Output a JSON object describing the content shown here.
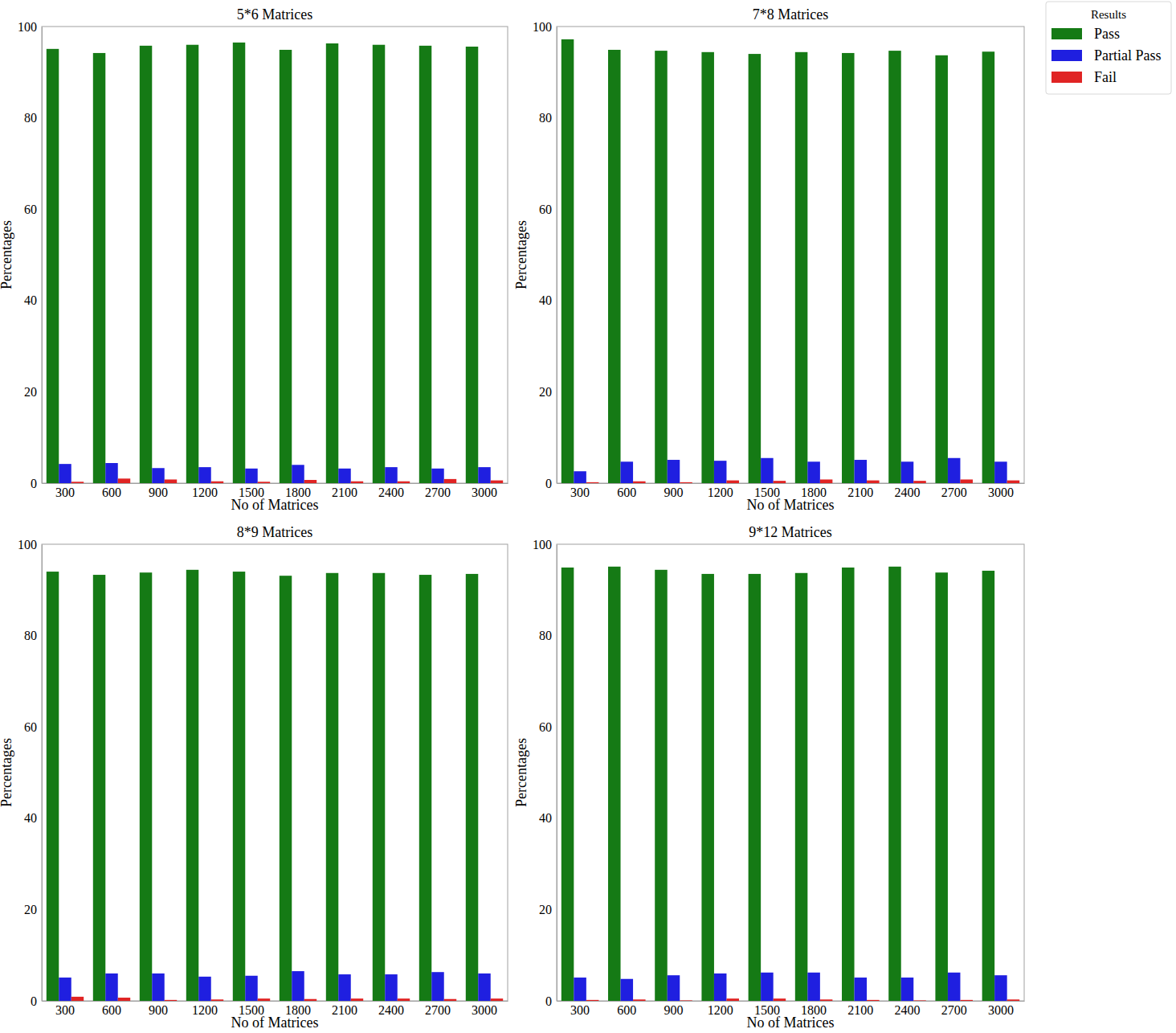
{
  "chart_data": [
    {
      "type": "bar",
      "title": "5*6 Matrices",
      "x_label": "No of Matrices",
      "y_label": "Percentages",
      "categories": [
        "300",
        "600",
        "900",
        "1200",
        "1500",
        "1800",
        "2100",
        "2400",
        "2700",
        "3000"
      ],
      "series": [
        {
          "color": "#157a15",
          "values": [
            95.1,
            94.2,
            95.8,
            96.0,
            96.5,
            94.9,
            96.3,
            96.0,
            95.8,
            95.6
          ]
        },
        {
          "color": "#1f1fe0",
          "values": [
            4.2,
            4.4,
            3.3,
            3.5,
            3.2,
            4.0,
            3.2,
            3.5,
            3.2,
            3.5
          ]
        },
        {
          "color": "#e02424",
          "values": [
            0.3,
            1.0,
            0.8,
            0.4,
            0.3,
            0.7,
            0.4,
            0.4,
            0.9,
            0.6
          ]
        }
      ],
      "ylim": [
        0,
        100
      ],
      "yticks": [
        0,
        20,
        40,
        60,
        80,
        100
      ]
    },
    {
      "type": "bar",
      "title": "7*8 Matrices",
      "x_label": "No of Matrices",
      "y_label": "Percentages",
      "categories": [
        "300",
        "600",
        "900",
        "1200",
        "1500",
        "1800",
        "2100",
        "2400",
        "2700",
        "3000"
      ],
      "series": [
        {
          "name": "Pass",
          "color": "#157a15",
          "values": [
            97.2,
            94.9,
            94.7,
            94.4,
            94.0,
            94.4,
            94.2,
            94.7,
            93.7,
            94.5
          ]
        },
        {
          "name": "Partial Pass",
          "color": "#1f1fe0",
          "values": [
            2.6,
            4.7,
            5.1,
            4.9,
            5.5,
            4.7,
            5.1,
            4.7,
            5.5,
            4.7
          ]
        },
        {
          "name": "Fail",
          "color": "#e02424",
          "values": [
            0.2,
            0.4,
            0.2,
            0.6,
            0.5,
            0.8,
            0.6,
            0.5,
            0.8,
            0.6
          ]
        }
      ],
      "ylim": [
        0,
        100
      ],
      "yticks": [
        0,
        20,
        40,
        60,
        80,
        100
      ],
      "legend": "outside-upper-right",
      "legend_title": "Results"
    },
    {
      "type": "bar",
      "title": "8*9 Matrices",
      "x_label": "No of Matrices",
      "y_label": "Percentages",
      "categories": [
        "300",
        "600",
        "900",
        "1200",
        "1500",
        "1800",
        "2100",
        "2400",
        "2700",
        "3000"
      ],
      "series": [
        {
          "color": "#157a15",
          "values": [
            94.0,
            93.3,
            93.8,
            94.4,
            94.0,
            93.1,
            93.7,
            93.7,
            93.3,
            93.5
          ]
        },
        {
          "color": "#1f1fe0",
          "values": [
            5.1,
            6.0,
            6.0,
            5.3,
            5.5,
            6.5,
            5.8,
            5.8,
            6.3,
            6.0
          ]
        },
        {
          "color": "#e02424",
          "values": [
            0.9,
            0.7,
            0.2,
            0.3,
            0.5,
            0.4,
            0.5,
            0.5,
            0.4,
            0.5
          ]
        }
      ],
      "ylim": [
        0,
        100
      ],
      "yticks": [
        0,
        20,
        40,
        60,
        80,
        100
      ]
    },
    {
      "type": "bar",
      "title": "9*12 Matrices",
      "x_label": "No of Matrices",
      "y_label": "Percentages",
      "categories": [
        "300",
        "600",
        "900",
        "1200",
        "1500",
        "1800",
        "2100",
        "2400",
        "2700",
        "3000"
      ],
      "series": [
        {
          "color": "#157a15",
          "values": [
            94.9,
            95.1,
            94.4,
            93.5,
            93.5,
            93.7,
            94.9,
            95.1,
            93.8,
            94.2
          ]
        },
        {
          "color": "#1f1fe0",
          "values": [
            5.1,
            4.8,
            5.6,
            6.0,
            6.2,
            6.2,
            5.1,
            5.1,
            6.2,
            5.6
          ]
        },
        {
          "color": "#e02424",
          "values": [
            0.2,
            0.3,
            0.1,
            0.5,
            0.5,
            0.3,
            0.2,
            0.1,
            0.2,
            0.3
          ]
        }
      ],
      "ylim": [
        0,
        100
      ],
      "yticks": [
        0,
        20,
        40,
        60,
        80,
        100
      ]
    }
  ]
}
